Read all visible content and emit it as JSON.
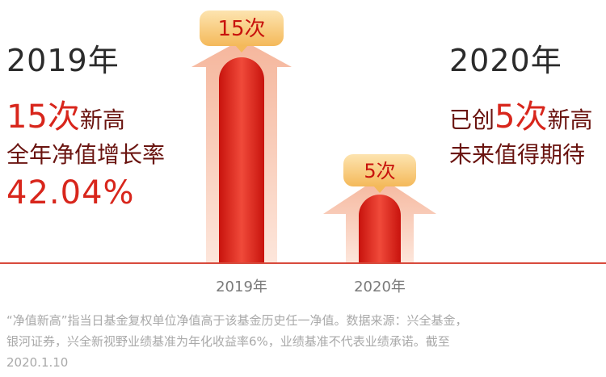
{
  "left": {
    "year": "2019年",
    "count_num": "15次",
    "count_suffix": "新高",
    "metric_label": "全年净值增长率",
    "metric_value": "42.04%"
  },
  "right": {
    "year": "2020年",
    "line1_prefix": "已创",
    "line1_num": "5次",
    "line1_suffix": "新高",
    "line2": "未来值得期待"
  },
  "footnote": {
    "line1": "“净值新高”指当日基金复权单位净值高于该基金历史任一净值。数据来源：兴全基金，",
    "line2": "银河证券，兴全新视野业绩基准为年化收益率6%，业绩基准不代表业绩承诺。截至",
    "line3": "2020.1.10"
  },
  "colors": {
    "accent_red": "#d8261c",
    "dark_red": "#6a1410",
    "badge_gold": "#f6c36a",
    "arrow_peach": "#f7c7b2"
  },
  "chart_data": {
    "type": "bar",
    "categories": [
      "2019年",
      "2020年"
    ],
    "values": [
      15,
      5
    ],
    "value_labels": [
      "15次",
      "5次"
    ],
    "ylim": [
      0,
      15
    ]
  }
}
